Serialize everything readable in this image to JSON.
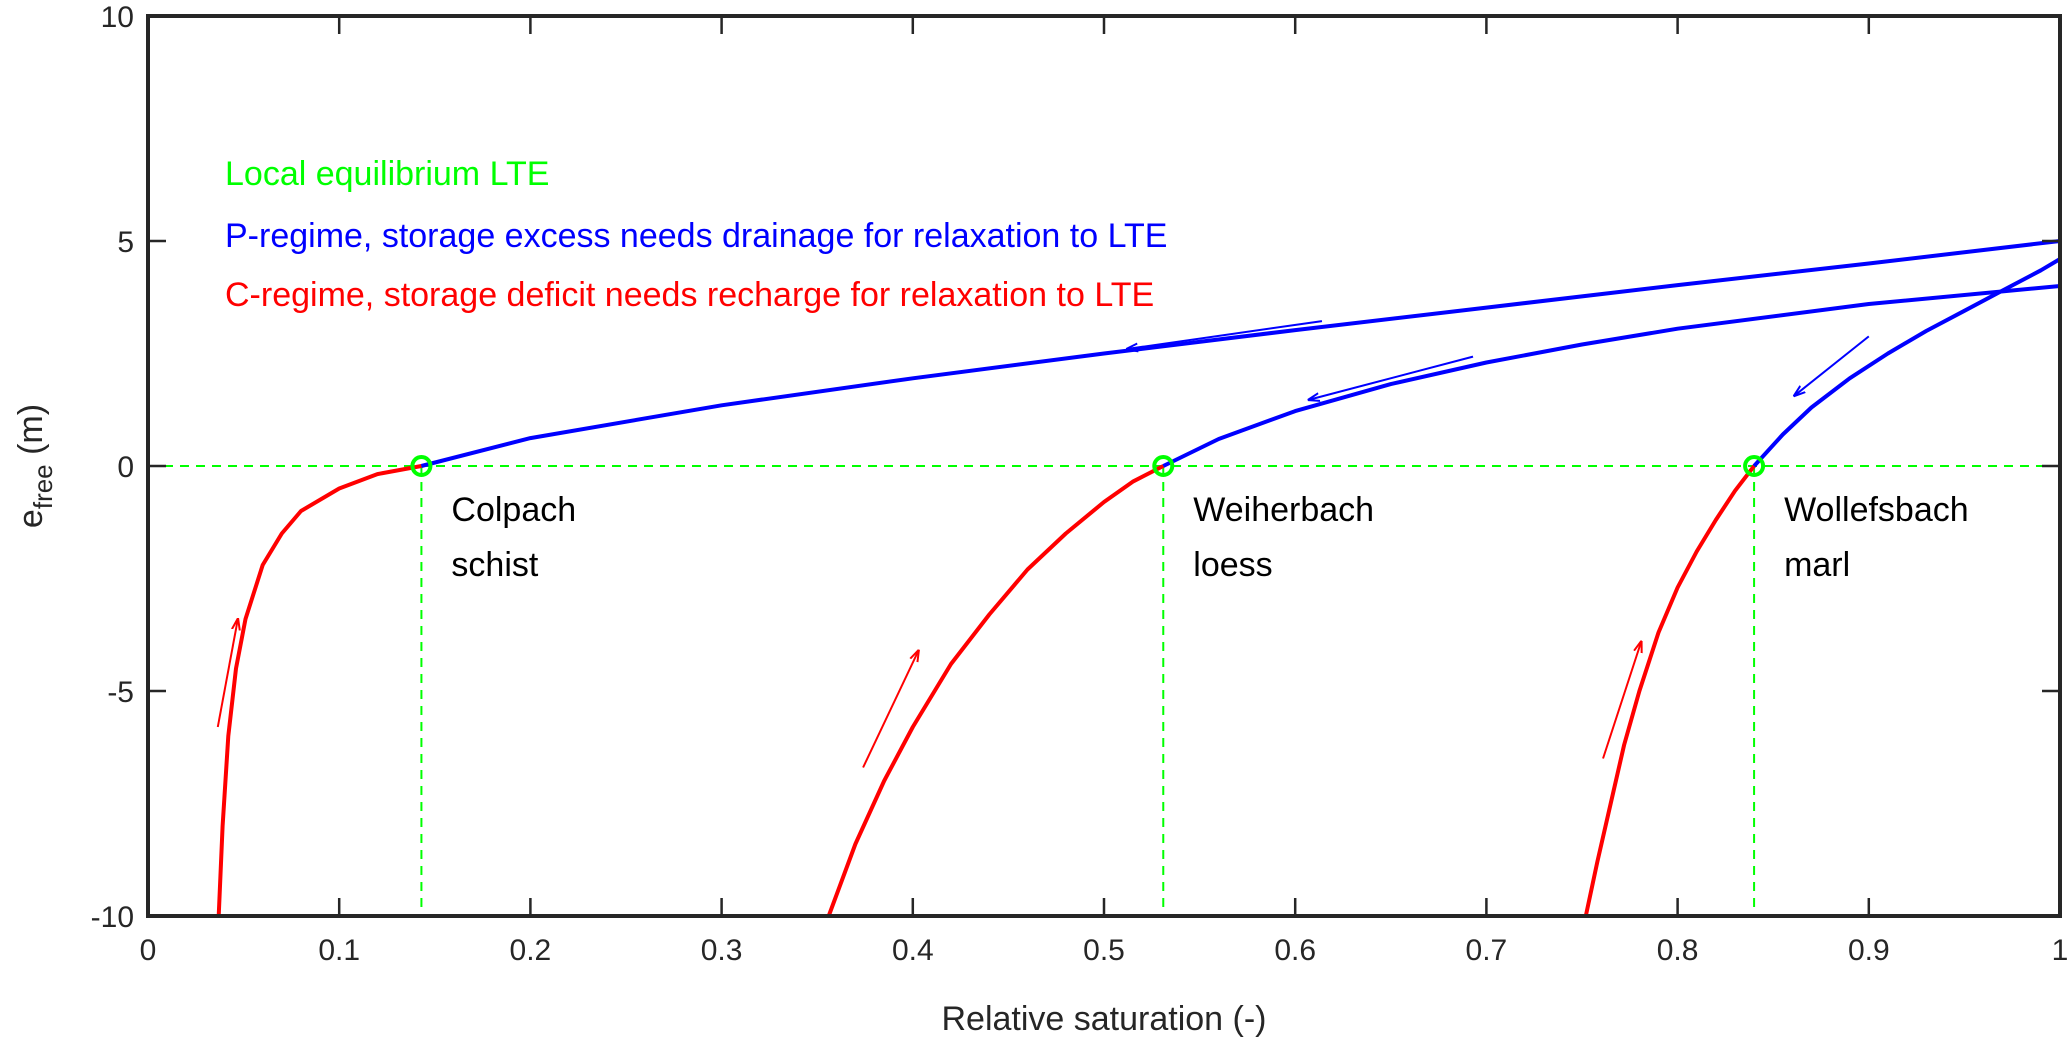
{
  "chart_data": {
    "type": "line",
    "title": "",
    "xlabel": "Relative saturation (-)",
    "ylabel_main": "e",
    "ylabel_sub": "free",
    "ylabel_unit": " (m)",
    "xlim": [
      0,
      1
    ],
    "ylim": [
      -10,
      10
    ],
    "xticks": [
      0,
      0.1,
      0.2,
      0.3,
      0.4,
      0.5,
      0.6,
      0.7,
      0.8,
      0.9,
      1
    ],
    "xtick_labels": [
      "0",
      "0.1",
      "0.2",
      "0.3",
      "0.4",
      "0.5",
      "0.6",
      "0.7",
      "0.8",
      "0.9",
      "1"
    ],
    "yticks": [
      -10,
      -5,
      0,
      5,
      10
    ],
    "ytick_labels": [
      "-10",
      "-5",
      "0",
      "5",
      "10"
    ],
    "grid": false,
    "colors": {
      "lte": "#00ff00",
      "p_regime": "#0000ff",
      "c_regime": "#ff0000",
      "axis": "#262626"
    },
    "legend": [
      {
        "text": "Local equilibrium LTE",
        "color": "#00ff00"
      },
      {
        "text": "P-regime, storage excess needs drainage for relaxation to LTE",
        "color": "#0000ff"
      },
      {
        "text": "C-regime, storage deficit needs recharge for relaxation to LTE",
        "color": "#ff0000"
      }
    ],
    "sites": [
      {
        "name": "Colpach",
        "soil": "schist",
        "lte_x": 0.143,
        "c_regime": [
          [
            0.037,
            -10
          ],
          [
            0.039,
            -8
          ],
          [
            0.042,
            -6
          ],
          [
            0.046,
            -4.5
          ],
          [
            0.051,
            -3.4
          ],
          [
            0.06,
            -2.2
          ],
          [
            0.07,
            -1.5
          ],
          [
            0.08,
            -1.0
          ],
          [
            0.1,
            -0.5
          ],
          [
            0.12,
            -0.18
          ],
          [
            0.143,
            0
          ]
        ],
        "p_regime": [
          [
            0.143,
            0
          ],
          [
            0.2,
            0.62
          ],
          [
            0.3,
            1.35
          ],
          [
            0.4,
            1.95
          ],
          [
            0.5,
            2.5
          ],
          [
            0.6,
            3.02
          ],
          [
            0.7,
            3.52
          ],
          [
            0.8,
            4.02
          ],
          [
            0.9,
            4.5
          ],
          [
            1,
            5.0
          ]
        ],
        "arrows": {
          "p": [
            [
              0.614,
              3.22
            ],
            [
              0.512,
              2.6
            ]
          ],
          "c": [
            [
              0.0365,
              -5.8
            ],
            [
              0.047,
              -3.4
            ]
          ]
        }
      },
      {
        "name": "Weiherbach",
        "soil": "loess",
        "lte_x": 0.531,
        "c_regime": [
          [
            0.356,
            -10
          ],
          [
            0.37,
            -8.4
          ],
          [
            0.385,
            -7.0
          ],
          [
            0.4,
            -5.8
          ],
          [
            0.42,
            -4.4
          ],
          [
            0.44,
            -3.3
          ],
          [
            0.46,
            -2.3
          ],
          [
            0.48,
            -1.5
          ],
          [
            0.5,
            -0.8
          ],
          [
            0.515,
            -0.35
          ],
          [
            0.531,
            0
          ]
        ],
        "p_regime": [
          [
            0.531,
            0
          ],
          [
            0.56,
            0.6
          ],
          [
            0.6,
            1.22
          ],
          [
            0.65,
            1.82
          ],
          [
            0.7,
            2.3
          ],
          [
            0.75,
            2.7
          ],
          [
            0.8,
            3.05
          ],
          [
            0.9,
            3.6
          ],
          [
            1,
            4.0
          ]
        ],
        "arrows": {
          "p": [
            [
              0.693,
              2.43
            ],
            [
              0.607,
              1.47
            ]
          ],
          "c": [
            [
              0.374,
              -6.7
            ],
            [
              0.403,
              -4.1
            ]
          ]
        }
      },
      {
        "name": "Wollefsbach",
        "soil": "marl",
        "lte_x": 0.84,
        "c_regime": [
          [
            0.752,
            -10
          ],
          [
            0.758,
            -8.8
          ],
          [
            0.765,
            -7.5
          ],
          [
            0.772,
            -6.2
          ],
          [
            0.78,
            -5.0
          ],
          [
            0.79,
            -3.7
          ],
          [
            0.8,
            -2.7
          ],
          [
            0.81,
            -1.9
          ],
          [
            0.82,
            -1.2
          ],
          [
            0.83,
            -0.55
          ],
          [
            0.84,
            0
          ]
        ],
        "p_regime": [
          [
            0.84,
            0
          ],
          [
            0.855,
            0.7
          ],
          [
            0.87,
            1.3
          ],
          [
            0.89,
            1.95
          ],
          [
            0.91,
            2.5
          ],
          [
            0.93,
            3.0
          ],
          [
            0.95,
            3.45
          ],
          [
            0.97,
            3.9
          ],
          [
            0.99,
            4.35
          ],
          [
            1,
            4.6
          ]
        ],
        "arrows": {
          "p": [
            [
              0.9,
              2.88
            ],
            [
              0.861,
              1.56
            ]
          ],
          "c": [
            [
              0.761,
              -6.5
            ],
            [
              0.781,
              -3.9
            ]
          ]
        }
      }
    ]
  }
}
